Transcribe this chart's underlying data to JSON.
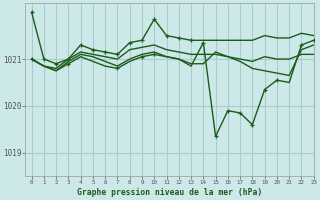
{
  "title": "Graphe pression niveau de la mer (hPa)",
  "bg_color": "#cce8e8",
  "grid_color": "#aacccc",
  "line_color": "#1a5c1a",
  "xlim": [
    -0.5,
    23
  ],
  "ylim": [
    1018.5,
    1022.2
  ],
  "yticks": [
    1019,
    1020,
    1021
  ],
  "xticks": [
    0,
    1,
    2,
    3,
    4,
    5,
    6,
    7,
    8,
    9,
    10,
    11,
    12,
    13,
    14,
    15,
    16,
    17,
    18,
    19,
    20,
    21,
    22,
    23
  ],
  "series": [
    {
      "y": [
        1022.0,
        1021.0,
        1020.9,
        1021.0,
        1021.3,
        1021.2,
        1021.15,
        1021.1,
        1021.35,
        1021.4,
        1021.85,
        1021.5,
        1021.45,
        1021.4,
        1021.4,
        1021.4,
        1021.4,
        1021.4,
        1021.4,
        1021.5,
        1021.45,
        1021.45,
        1021.55,
        1021.5
      ],
      "markers": [
        0,
        1,
        2,
        3,
        4,
        5,
        6,
        7,
        8,
        9,
        10,
        11,
        12,
        13
      ],
      "lw": 1.0
    },
    {
      "y": [
        1021.0,
        1020.85,
        1020.8,
        1021.0,
        1021.15,
        1021.1,
        1021.05,
        1021.0,
        1021.2,
        1021.25,
        1021.3,
        1021.2,
        1021.15,
        1021.1,
        1021.1,
        1021.1,
        1021.05,
        1021.0,
        1020.95,
        1021.05,
        1021.0,
        1021.0,
        1021.1,
        1021.1
      ],
      "markers": [],
      "lw": 1.0
    },
    {
      "y": [
        1021.0,
        1020.85,
        1020.75,
        1020.95,
        1021.1,
        1021.05,
        1020.95,
        1020.85,
        1021.0,
        1021.1,
        1021.15,
        1021.05,
        1021.0,
        1020.9,
        1020.9,
        1021.15,
        1021.05,
        1020.95,
        1020.8,
        1020.75,
        1020.7,
        1020.65,
        1021.2,
        1021.3
      ],
      "markers": [],
      "lw": 1.0
    },
    {
      "y": [
        1021.0,
        1020.85,
        1020.75,
        1020.9,
        1021.05,
        1020.95,
        1020.85,
        1020.8,
        1020.95,
        1021.05,
        1021.1,
        1021.05,
        1021.0,
        1020.85,
        1021.35,
        1019.35,
        1019.9,
        1019.85,
        1019.6,
        1020.35,
        1020.55,
        1020.5,
        1021.3,
        1021.4
      ],
      "markers": [
        0,
        3,
        7,
        9,
        10,
        14,
        15,
        16,
        17,
        18,
        19,
        20,
        22,
        23
      ],
      "lw": 1.0
    }
  ]
}
